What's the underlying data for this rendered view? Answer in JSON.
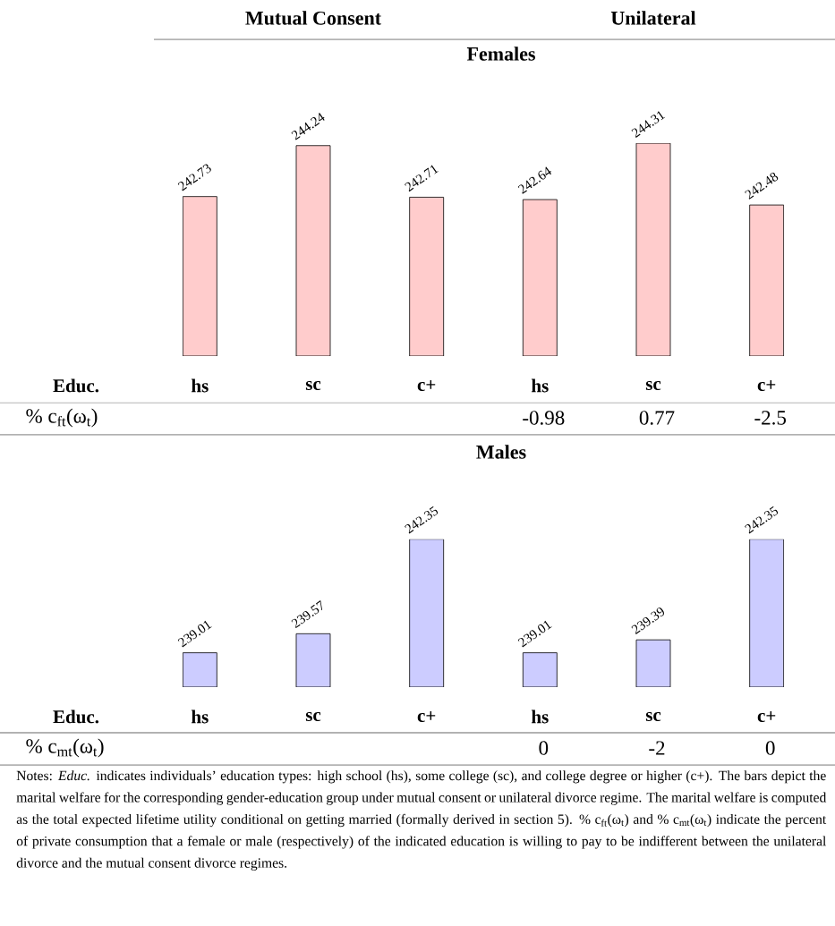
{
  "chart_data": [
    {
      "type": "bar",
      "title": "Females",
      "xlabel": "Educ.",
      "categories": [
        "hs",
        "sc",
        "c+",
        "hs",
        "sc",
        "c+"
      ],
      "values": [
        242.73,
        244.24,
        242.71,
        242.64,
        244.31,
        242.48
      ],
      "color": "#ffcccc",
      "ylim": [
        238,
        244.31
      ],
      "data_labels": true,
      "tick_labels": "x",
      "annotations": [
        "Mutual Consent",
        "Unilateral",
        "% c$_{ft}$(ω$_{t}$)",
        "-0.98",
        "0.77",
        "-2.5"
      ]
    },
    {
      "type": "bar",
      "title": "Males",
      "xlabel": "Educ.",
      "categories": [
        "hs",
        "sc",
        "c+",
        "hs",
        "sc",
        "c+"
      ],
      "values": [
        239.01,
        239.57,
        242.35,
        239.01,
        239.39,
        242.35
      ],
      "color": "#ccccff",
      "ylim": [
        238,
        242.35
      ],
      "data_labels": true,
      "tick_labels": "x",
      "annotations": [
        "% c$_{mt}$(ω$_{t}$)",
        "0",
        "-2",
        "0",
        "Notes: *Educ.* indicates individuals’ education types: high school (hs), some college (sc), and college degree or higher (c+). The bars depict the marital welfare for the corresponding gender-education group under mutual consent or unilateral divorce regime. The marital welfare is computed as the total expected lifetime utility conditional on getting married (formally derived in section 5). % c$_{ft}$(ω$_{t}$) and % c$_{mt}$(ω$_{t}$) indicate the percent of private consumption that a female or male (respectively) of the indicated education is willing to pay to be indifferent between the unilateral divorce and the mutual consent divorce regimes."
      ]
    }
  ]
}
